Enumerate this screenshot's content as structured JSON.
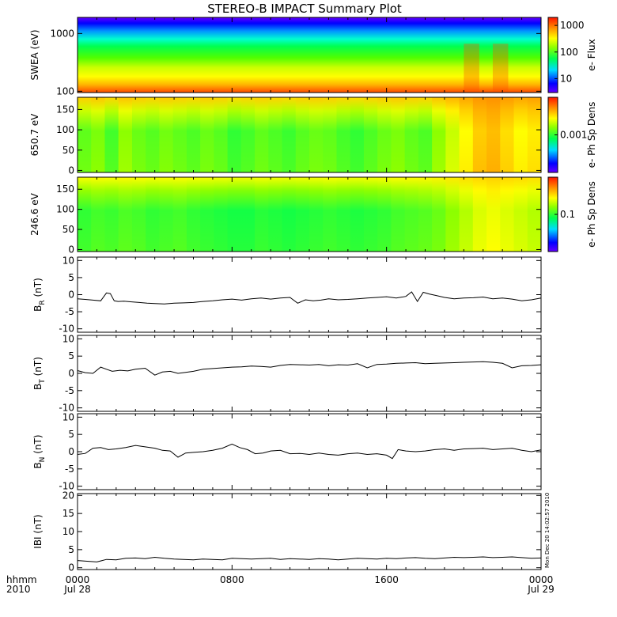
{
  "title": "STEREO-B IMPACT Summary Plot",
  "timestamp": "Mon Dec 20 14:02:57 2010",
  "x_axis": {
    "row1_label": "hhmm",
    "row2_label": "2010",
    "tick_times": [
      "0000",
      "0800",
      "1600",
      "0000"
    ],
    "tick_dates": [
      "Jul 28",
      "",
      "",
      "Jul 29"
    ],
    "range_hours": [
      0,
      24
    ]
  },
  "chart_data": [
    {
      "type": "heatmap",
      "name": "swea",
      "ylabel": "SWEA (eV)",
      "y_scale": "log",
      "ylim": [
        95,
        1900
      ],
      "y_ticks": [
        {
          "v": 100,
          "label": "100"
        },
        {
          "v": 1000,
          "label": "1000"
        }
      ],
      "colorbar": {
        "label": "e- Flux",
        "scale": "log",
        "ticks": [
          {
            "v": 10,
            "label": "10"
          },
          {
            "v": 100,
            "label": "100"
          },
          {
            "v": 1000,
            "label": "1000"
          }
        ],
        "range": [
          3,
          2000
        ]
      },
      "color_by_energy": [
        {
          "e": 100,
          "c": "#ff5a00"
        },
        {
          "e": 130,
          "c": "#ffb400"
        },
        {
          "e": 180,
          "c": "#ffff00"
        },
        {
          "e": 260,
          "c": "#c8ff00"
        },
        {
          "e": 380,
          "c": "#50ff00"
        },
        {
          "e": 600,
          "c": "#00ff50"
        },
        {
          "e": 800,
          "c": "#00ffd0"
        },
        {
          "e": 1100,
          "c": "#0096ff"
        },
        {
          "e": 1500,
          "c": "#0000ff"
        },
        {
          "e": 1900,
          "c": "#6400ff"
        }
      ],
      "enhanced_hours": [
        [
          20.0,
          20.8
        ],
        [
          21.5,
          22.3
        ]
      ]
    },
    {
      "type": "heatmap",
      "name": "pad-650",
      "ylabel": "650.7 eV",
      "ylim": [
        -5,
        180
      ],
      "y_ticks": [
        {
          "v": 0,
          "label": "0"
        },
        {
          "v": 50,
          "label": "50"
        },
        {
          "v": 100,
          "label": "100"
        },
        {
          "v": 150,
          "label": "150"
        }
      ],
      "colorbar": {
        "label": "e- Ph Sp Dens",
        "ticks": [
          {
            "v": 0.5,
            "label": "0.001"
          }
        ]
      },
      "column_levels": [
        0.55,
        0.58,
        0.52,
        0.6,
        0.56,
        0.54,
        0.57,
        0.55,
        0.53,
        0.56,
        0.54,
        0.5,
        0.52,
        0.55,
        0.53,
        0.51,
        0.54,
        0.56,
        0.55,
        0.52,
        0.5,
        0.53,
        0.56,
        0.58,
        0.55,
        0.53,
        0.6,
        0.66,
        0.72,
        0.78,
        0.8,
        0.76,
        0.72,
        0.74
      ],
      "top_band_level": 0.85
    },
    {
      "type": "heatmap",
      "name": "pad-246",
      "ylabel": "246.6 eV",
      "ylim": [
        -5,
        180
      ],
      "y_ticks": [
        {
          "v": 0,
          "label": "0"
        },
        {
          "v": 50,
          "label": "50"
        },
        {
          "v": 100,
          "label": "100"
        },
        {
          "v": 150,
          "label": "150"
        }
      ],
      "colorbar": {
        "label": "e- Ph Sp Dens",
        "ticks": [
          {
            "v": 0.5,
            "label": "0.1"
          }
        ]
      },
      "column_levels": [
        0.5,
        0.52,
        0.51,
        0.53,
        0.52,
        0.5,
        0.51,
        0.52,
        0.5,
        0.49,
        0.48,
        0.47,
        0.47,
        0.49,
        0.48,
        0.47,
        0.48,
        0.49,
        0.5,
        0.49,
        0.48,
        0.49,
        0.5,
        0.52,
        0.53,
        0.54,
        0.56,
        0.6,
        0.64,
        0.68,
        0.7,
        0.68,
        0.66,
        0.64
      ],
      "top_band_level": 0.8
    },
    {
      "type": "line",
      "name": "br",
      "ylabel_main": "B",
      "ylabel_sub": "R",
      "ylabel_unit": "(nT)",
      "ylim": [
        -11,
        11
      ],
      "y_ticks": [
        {
          "v": -10,
          "label": "-10"
        },
        {
          "v": -5,
          "label": "-5"
        },
        {
          "v": 0,
          "label": "0"
        },
        {
          "v": 5,
          "label": "5"
        },
        {
          "v": 10,
          "label": "10"
        }
      ],
      "x": [
        0,
        0.4,
        0.8,
        1.2,
        1.5,
        1.7,
        1.9,
        2.1,
        2.4,
        2.8,
        3.2,
        3.6,
        4.0,
        4.5,
        5.0,
        5.5,
        6.0,
        6.5,
        7.0,
        7.5,
        8.0,
        8.5,
        9.0,
        9.5,
        10.0,
        10.5,
        11.0,
        11.4,
        11.8,
        12.2,
        12.6,
        13.0,
        13.5,
        14.0,
        14.5,
        15.0,
        15.5,
        16.0,
        16.5,
        17.0,
        17.3,
        17.6,
        17.9,
        18.2,
        18.6,
        19.0,
        19.5,
        20.0,
        20.5,
        21.0,
        21.5,
        22.0,
        22.5,
        23.0,
        23.5,
        24.0
      ],
      "y": [
        -1.2,
        -1.4,
        -1.6,
        -1.8,
        0.5,
        0.3,
        -1.8,
        -2.0,
        -1.9,
        -2.1,
        -2.3,
        -2.5,
        -2.6,
        -2.7,
        -2.5,
        -2.4,
        -2.3,
        -2.0,
        -1.8,
        -1.5,
        -1.3,
        -1.6,
        -1.2,
        -1.0,
        -1.3,
        -1.0,
        -0.8,
        -2.5,
        -1.5,
        -1.8,
        -1.6,
        -1.2,
        -1.5,
        -1.4,
        -1.2,
        -1.0,
        -0.8,
        -0.6,
        -1.0,
        -0.5,
        0.8,
        -2.0,
        0.7,
        0.2,
        -0.3,
        -0.8,
        -1.2,
        -1.0,
        -0.9,
        -0.7,
        -1.2,
        -1.0,
        -1.3,
        -1.8,
        -1.5,
        -1.0
      ]
    },
    {
      "type": "line",
      "name": "bt",
      "ylabel_main": "B",
      "ylabel_sub": "T",
      "ylabel_unit": "(nT)",
      "ylim": [
        -11,
        11
      ],
      "y_ticks": [
        {
          "v": -10,
          "label": "-10"
        },
        {
          "v": -5,
          "label": "-5"
        },
        {
          "v": 0,
          "label": "0"
        },
        {
          "v": 5,
          "label": "5"
        },
        {
          "v": 10,
          "label": "10"
        }
      ],
      "x": [
        0,
        0.4,
        0.8,
        1.2,
        1.5,
        1.8,
        2.2,
        2.6,
        3.0,
        3.5,
        4.0,
        4.4,
        4.8,
        5.2,
        5.6,
        6.0,
        6.5,
        7.0,
        7.5,
        8.0,
        8.5,
        9.0,
        9.5,
        10.0,
        10.5,
        11.0,
        11.5,
        12.0,
        12.5,
        13.0,
        13.5,
        14.0,
        14.5,
        15.0,
        15.5,
        16.0,
        16.5,
        17.0,
        17.5,
        18.0,
        18.5,
        19.0,
        19.5,
        20.0,
        20.5,
        21.0,
        21.5,
        22.0,
        22.5,
        23.0,
        23.5,
        24.0
      ],
      "y": [
        0.8,
        0.2,
        0.0,
        1.8,
        1.2,
        0.6,
        0.9,
        0.7,
        1.2,
        1.5,
        -0.5,
        0.4,
        0.6,
        0.0,
        0.3,
        0.6,
        1.2,
        1.4,
        1.6,
        1.8,
        1.9,
        2.1,
        2.0,
        1.8,
        2.3,
        2.6,
        2.5,
        2.4,
        2.6,
        2.2,
        2.5,
        2.4,
        2.8,
        1.6,
        2.6,
        2.7,
        2.9,
        3.0,
        3.1,
        2.8,
        2.9,
        3.0,
        3.1,
        3.2,
        3.3,
        3.4,
        3.2,
        2.9,
        1.6,
        2.2,
        2.3,
        2.5
      ]
    },
    {
      "type": "line",
      "name": "bn",
      "ylabel_main": "B",
      "ylabel_sub": "N",
      "ylabel_unit": "(nT)",
      "ylim": [
        -11,
        11
      ],
      "y_ticks": [
        {
          "v": -10,
          "label": "-10"
        },
        {
          "v": -5,
          "label": "-5"
        },
        {
          "v": 0,
          "label": "0"
        },
        {
          "v": 5,
          "label": "5"
        },
        {
          "v": 10,
          "label": "10"
        }
      ],
      "x": [
        0,
        0.4,
        0.8,
        1.2,
        1.6,
        2.0,
        2.5,
        3.0,
        3.5,
        4.0,
        4.4,
        4.8,
        5.2,
        5.6,
        6.0,
        6.5,
        7.0,
        7.5,
        8.0,
        8.4,
        8.8,
        9.2,
        9.6,
        10.0,
        10.5,
        11.0,
        11.5,
        12.0,
        12.5,
        13.0,
        13.5,
        14.0,
        14.5,
        15.0,
        15.5,
        16.0,
        16.3,
        16.6,
        17.0,
        17.5,
        18.0,
        18.5,
        19.0,
        19.5,
        20.0,
        20.5,
        21.0,
        21.5,
        22.0,
        22.5,
        23.0,
        23.5,
        24.0
      ],
      "y": [
        -0.8,
        -0.5,
        1.0,
        1.2,
        0.6,
        0.8,
        1.2,
        1.8,
        1.4,
        1.0,
        0.4,
        0.2,
        -1.6,
        -0.4,
        -0.2,
        0.0,
        0.4,
        1.0,
        2.2,
        1.2,
        0.6,
        -0.6,
        -0.4,
        0.2,
        0.4,
        -0.6,
        -0.5,
        -0.8,
        -0.4,
        -0.8,
        -1.0,
        -0.6,
        -0.4,
        -0.8,
        -0.6,
        -1.0,
        -2.0,
        0.6,
        0.2,
        0.0,
        0.2,
        0.6,
        0.8,
        0.4,
        0.8,
        0.9,
        1.0,
        0.6,
        0.8,
        1.0,
        0.4,
        0.0,
        0.5
      ]
    },
    {
      "type": "line",
      "name": "bmag",
      "ylabel_main": "IBI",
      "ylabel_sub": "",
      "ylabel_unit": "(nT)",
      "ylim": [
        -0.5,
        20.5
      ],
      "y_ticks": [
        {
          "v": 0,
          "label": "0"
        },
        {
          "v": 5,
          "label": "5"
        },
        {
          "v": 10,
          "label": "10"
        },
        {
          "v": 15,
          "label": "15"
        },
        {
          "v": 20,
          "label": "20"
        }
      ],
      "x": [
        0,
        0.5,
        1.0,
        1.5,
        2.0,
        2.5,
        3.0,
        3.5,
        4.0,
        4.5,
        5.0,
        5.5,
        6.0,
        6.5,
        7.0,
        7.5,
        8.0,
        8.5,
        9.0,
        9.5,
        10.0,
        10.5,
        11.0,
        11.5,
        12.0,
        12.5,
        13.0,
        13.5,
        14.0,
        14.5,
        15.0,
        15.5,
        16.0,
        16.5,
        17.0,
        17.5,
        18.0,
        18.5,
        19.0,
        19.5,
        20.0,
        20.5,
        21.0,
        21.5,
        22.0,
        22.5,
        23.0,
        23.5,
        24.0
      ],
      "y": [
        2.0,
        1.8,
        1.6,
        2.3,
        2.2,
        2.6,
        2.7,
        2.5,
        2.9,
        2.6,
        2.4,
        2.3,
        2.2,
        2.4,
        2.3,
        2.2,
        2.6,
        2.5,
        2.4,
        2.5,
        2.6,
        2.3,
        2.5,
        2.4,
        2.3,
        2.5,
        2.4,
        2.2,
        2.4,
        2.6,
        2.5,
        2.4,
        2.6,
        2.5,
        2.7,
        2.8,
        2.6,
        2.5,
        2.7,
        2.9,
        2.8,
        2.9,
        3.0,
        2.8,
        2.9,
        3.0,
        2.8,
        2.6,
        2.7
      ]
    }
  ]
}
